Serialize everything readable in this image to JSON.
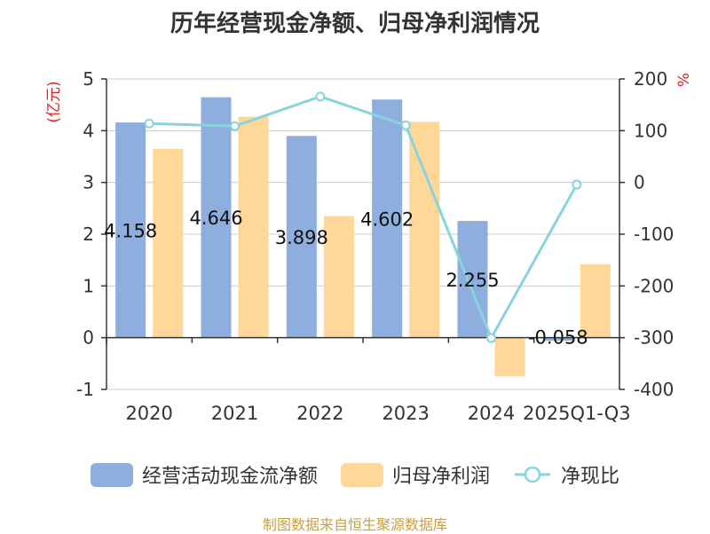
{
  "chart_data": {
    "type": "bar",
    "title": "历年经营现金净额、归母净利润情况",
    "categories": [
      "2020",
      "2021",
      "2022",
      "2023",
      "2024",
      "2025Q1-Q3"
    ],
    "y_left_label": "(亿元)",
    "y_right_label": "%",
    "y_left_ticks": [
      "5",
      "4",
      "3",
      "2",
      "1",
      "0",
      "-1"
    ],
    "y_right_ticks": [
      "200",
      "100",
      "0",
      "-100",
      "-200",
      "-300",
      "-400"
    ],
    "ylim_left": [
      -1,
      5
    ],
    "ylim_right": [
      -400,
      200
    ],
    "series": [
      {
        "name": "经营活动现金流净额",
        "kind": "bar",
        "axis": "left",
        "color": "#8eaedd",
        "values": [
          4.158,
          4.646,
          3.898,
          4.602,
          2.255,
          -0.058
        ],
        "labels": [
          "4.158",
          "4.646",
          "3.898",
          "4.602",
          "2.255",
          "-0.058"
        ]
      },
      {
        "name": "归母净利润",
        "kind": "bar",
        "axis": "left",
        "color": "#fed799",
        "values": [
          3.65,
          4.27,
          2.35,
          4.17,
          -0.75,
          1.42
        ]
      },
      {
        "name": "净现比",
        "kind": "line",
        "axis": "right",
        "color": "#88d3dd",
        "values": [
          113.9,
          108.8,
          165.9,
          110.4,
          -300.7,
          -4.1
        ]
      }
    ],
    "grid": true,
    "legend_position": "bottom",
    "source": "制图数据来自恒生聚源数据库"
  }
}
